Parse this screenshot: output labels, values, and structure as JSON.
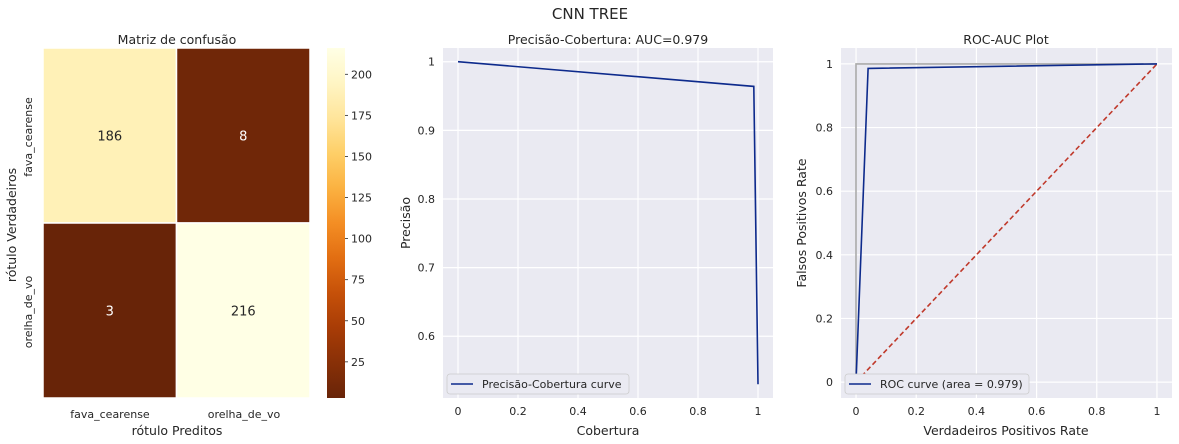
{
  "figure": {
    "title": "CNN TREE"
  },
  "chart_data": [
    {
      "type": "heatmap",
      "title": "Matriz de confusão",
      "xlabel": "rótulo Preditos",
      "ylabel": "rótulo Verdadeiros",
      "x_categories": [
        "fava_cearense",
        "orelha_de_vo"
      ],
      "y_categories": [
        "fava_cearense",
        "orelha_de_vo"
      ],
      "values": [
        [
          186,
          8
        ],
        [
          3,
          216
        ]
      ],
      "colormap": "YlOrBr_r",
      "colorbar": {
        "min": 3,
        "max": 216,
        "ticks": [
          25,
          50,
          75,
          100,
          125,
          150,
          175,
          200
        ]
      }
    },
    {
      "type": "line",
      "title": "Precisão-Cobertura: AUC=0.979",
      "xlabel": "Cobertura",
      "ylabel": "Precisão",
      "xlim": [
        -0.05,
        1.05
      ],
      "ylim": [
        0.51,
        1.02
      ],
      "xticks": [
        0.0,
        0.2,
        0.4,
        0.6,
        0.8,
        1.0
      ],
      "yticks": [
        0.6,
        0.7,
        0.8,
        0.9,
        1.0
      ],
      "grid": true,
      "legend": "lower-left",
      "series": [
        {
          "name": "Precisão-Cobertura curve",
          "color": "#0d2a8c",
          "x": [
            0.0,
            0.986,
            1.0
          ],
          "y": [
            1.0,
            0.964,
            0.53
          ]
        }
      ]
    },
    {
      "type": "line",
      "title": "ROC-AUC Plot",
      "xlabel": "Verdadeiros Positivos Rate",
      "ylabel": "Falsos Positivos Rate",
      "xlim": [
        -0.05,
        1.05
      ],
      "ylim": [
        -0.05,
        1.05
      ],
      "xticks": [
        0.0,
        0.2,
        0.4,
        0.6,
        0.8,
        1.0
      ],
      "yticks": [
        0.0,
        0.2,
        0.4,
        0.6,
        0.8,
        1.0
      ],
      "grid": true,
      "legend": "lower-left",
      "series": [
        {
          "name": "ROC curve (area = 0.979)",
          "color": "#0d2a8c",
          "x": [
            0.0,
            0.04,
            1.0
          ],
          "y": [
            0.0,
            0.986,
            1.0
          ]
        },
        {
          "name": "",
          "color": "#aaaaaa",
          "x": [
            0.0,
            0.0,
            1.0
          ],
          "y": [
            0.0,
            1.0,
            1.0
          ]
        },
        {
          "name": "",
          "color": "#c0392b",
          "dashed": true,
          "x": [
            0.0,
            1.0
          ],
          "y": [
            0.0,
            1.0
          ]
        }
      ]
    }
  ]
}
